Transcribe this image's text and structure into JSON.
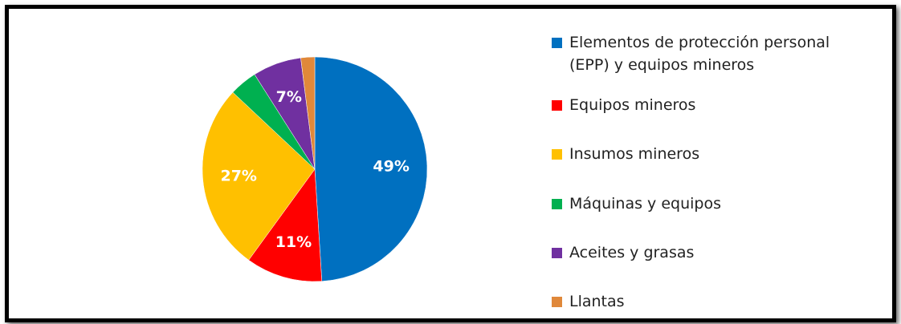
{
  "chart_data": {
    "type": "pie",
    "categories": [
      "Elementos de protección personal (EPP) y equipos mineros",
      "Equipos mineros",
      "Insumos mineros",
      "Máquinas y equipos",
      "Aceites y grasas",
      "Llantas"
    ],
    "values": [
      49,
      11,
      27,
      4,
      7,
      2
    ],
    "value_labels": [
      "49%",
      "11%",
      "27%",
      null,
      "7%",
      null
    ],
    "colors": [
      "#0070c0",
      "#ff0000",
      "#ffc000",
      "#00b050",
      "#7030a0",
      "#e0883a"
    ],
    "legend": "right"
  }
}
